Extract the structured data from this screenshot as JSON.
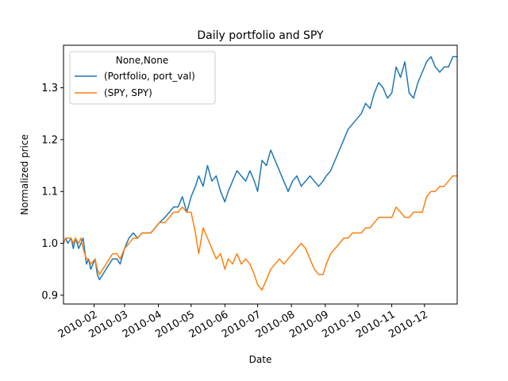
{
  "chart_data": {
    "type": "line",
    "title": "Daily portfolio and SPY",
    "xlabel": "Date",
    "ylabel": "Normalized price",
    "xlim": [
      "2010-01-04",
      "2010-12-31"
    ],
    "ylim": [
      0.883,
      1.382
    ],
    "yticks": [
      0.9,
      1.0,
      1.1,
      1.2,
      1.3
    ],
    "ytick_labels": [
      "0.9",
      "1.0",
      "1.1",
      "1.2",
      "1.3"
    ],
    "xticks": [
      "2010-02-01",
      "2010-03-01",
      "2010-04-01",
      "2010-05-01",
      "2010-06-01",
      "2010-07-01",
      "2010-08-01",
      "2010-09-01",
      "2010-10-01",
      "2010-11-01",
      "2010-12-01"
    ],
    "xtick_labels": [
      "2010-02",
      "2010-03",
      "2010-04",
      "2010-05",
      "2010-06",
      "2010-07",
      "2010-08",
      "2010-09",
      "2010-10",
      "2010-11",
      "2010-12"
    ],
    "grid": false,
    "legend": {
      "title": "None,None",
      "placement": "top-left"
    },
    "series": [
      {
        "name": "(Portfolio, port_val)",
        "color": "#1f77b4",
        "points": [
          [
            "2010-01-04",
            1.0
          ],
          [
            "2010-01-06",
            1.01
          ],
          [
            "2010-01-08",
            1.0
          ],
          [
            "2010-01-11",
            1.01
          ],
          [
            "2010-01-13",
            0.99
          ],
          [
            "2010-01-15",
            1.01
          ],
          [
            "2010-01-18",
            0.99
          ],
          [
            "2010-01-20",
            1.0
          ],
          [
            "2010-01-22",
            1.01
          ],
          [
            "2010-01-25",
            0.96
          ],
          [
            "2010-01-27",
            0.97
          ],
          [
            "2010-01-29",
            0.95
          ],
          [
            "2010-02-02",
            0.97
          ],
          [
            "2010-02-04",
            0.94
          ],
          [
            "2010-02-06",
            0.93
          ],
          [
            "2010-02-09",
            0.94
          ],
          [
            "2010-02-12",
            0.95
          ],
          [
            "2010-02-15",
            0.96
          ],
          [
            "2010-02-18",
            0.97
          ],
          [
            "2010-02-22",
            0.97
          ],
          [
            "2010-02-25",
            0.96
          ],
          [
            "2010-03-01",
            0.99
          ],
          [
            "2010-03-05",
            1.01
          ],
          [
            "2010-03-09",
            1.02
          ],
          [
            "2010-03-13",
            1.01
          ],
          [
            "2010-03-17",
            1.02
          ],
          [
            "2010-03-21",
            1.02
          ],
          [
            "2010-03-25",
            1.02
          ],
          [
            "2010-03-29",
            1.03
          ],
          [
            "2010-04-02",
            1.04
          ],
          [
            "2010-04-07",
            1.05
          ],
          [
            "2010-04-11",
            1.06
          ],
          [
            "2010-04-15",
            1.07
          ],
          [
            "2010-04-19",
            1.07
          ],
          [
            "2010-04-23",
            1.09
          ],
          [
            "2010-04-27",
            1.06
          ],
          [
            "2010-05-01",
            1.09
          ],
          [
            "2010-05-05",
            1.11
          ],
          [
            "2010-05-08",
            1.13
          ],
          [
            "2010-05-12",
            1.11
          ],
          [
            "2010-05-16",
            1.15
          ],
          [
            "2010-05-20",
            1.12
          ],
          [
            "2010-05-24",
            1.13
          ],
          [
            "2010-05-28",
            1.1
          ],
          [
            "2010-06-01",
            1.08
          ],
          [
            "2010-06-04",
            1.1
          ],
          [
            "2010-06-08",
            1.12
          ],
          [
            "2010-06-12",
            1.14
          ],
          [
            "2010-06-16",
            1.13
          ],
          [
            "2010-06-20",
            1.12
          ],
          [
            "2010-06-24",
            1.14
          ],
          [
            "2010-06-28",
            1.12
          ],
          [
            "2010-07-01",
            1.1
          ],
          [
            "2010-07-05",
            1.16
          ],
          [
            "2010-07-09",
            1.15
          ],
          [
            "2010-07-13",
            1.18
          ],
          [
            "2010-07-17",
            1.16
          ],
          [
            "2010-07-21",
            1.14
          ],
          [
            "2010-07-25",
            1.12
          ],
          [
            "2010-07-29",
            1.1
          ],
          [
            "2010-08-02",
            1.12
          ],
          [
            "2010-08-06",
            1.13
          ],
          [
            "2010-08-10",
            1.11
          ],
          [
            "2010-08-14",
            1.12
          ],
          [
            "2010-08-18",
            1.13
          ],
          [
            "2010-08-22",
            1.12
          ],
          [
            "2010-08-26",
            1.11
          ],
          [
            "2010-08-30",
            1.12
          ],
          [
            "2010-09-02",
            1.13
          ],
          [
            "2010-09-06",
            1.14
          ],
          [
            "2010-09-10",
            1.16
          ],
          [
            "2010-09-14",
            1.18
          ],
          [
            "2010-09-18",
            1.2
          ],
          [
            "2010-09-22",
            1.22
          ],
          [
            "2010-09-26",
            1.23
          ],
          [
            "2010-09-30",
            1.24
          ],
          [
            "2010-10-04",
            1.25
          ],
          [
            "2010-10-08",
            1.27
          ],
          [
            "2010-10-12",
            1.26
          ],
          [
            "2010-10-16",
            1.29
          ],
          [
            "2010-10-20",
            1.31
          ],
          [
            "2010-10-24",
            1.3
          ],
          [
            "2010-10-28",
            1.28
          ],
          [
            "2010-11-01",
            1.29
          ],
          [
            "2010-11-05",
            1.34
          ],
          [
            "2010-11-09",
            1.32
          ],
          [
            "2010-11-13",
            1.35
          ],
          [
            "2010-11-17",
            1.29
          ],
          [
            "2010-11-21",
            1.28
          ],
          [
            "2010-11-25",
            1.31
          ],
          [
            "2010-11-29",
            1.33
          ],
          [
            "2010-12-03",
            1.35
          ],
          [
            "2010-12-07",
            1.36
          ],
          [
            "2010-12-11",
            1.34
          ],
          [
            "2010-12-15",
            1.33
          ],
          [
            "2010-12-19",
            1.34
          ],
          [
            "2010-12-23",
            1.34
          ],
          [
            "2010-12-27",
            1.36
          ],
          [
            "2010-12-31",
            1.36
          ]
        ]
      },
      {
        "name": "(SPY, SPY)",
        "color": "#ff7f0e",
        "points": [
          [
            "2010-01-04",
            1.0
          ],
          [
            "2010-01-06",
            1.01
          ],
          [
            "2010-01-08",
            1.01
          ],
          [
            "2010-01-11",
            1.01
          ],
          [
            "2010-01-13",
            1.0
          ],
          [
            "2010-01-15",
            1.01
          ],
          [
            "2010-01-18",
            1.0
          ],
          [
            "2010-01-20",
            1.01
          ],
          [
            "2010-01-22",
            0.99
          ],
          [
            "2010-01-25",
            0.97
          ],
          [
            "2010-01-27",
            0.97
          ],
          [
            "2010-01-29",
            0.96
          ],
          [
            "2010-02-02",
            0.97
          ],
          [
            "2010-02-04",
            0.95
          ],
          [
            "2010-02-06",
            0.94
          ],
          [
            "2010-02-09",
            0.95
          ],
          [
            "2010-02-12",
            0.96
          ],
          [
            "2010-02-15",
            0.97
          ],
          [
            "2010-02-18",
            0.98
          ],
          [
            "2010-02-22",
            0.98
          ],
          [
            "2010-02-25",
            0.97
          ],
          [
            "2010-03-01",
            0.99
          ],
          [
            "2010-03-05",
            1.0
          ],
          [
            "2010-03-09",
            1.01
          ],
          [
            "2010-03-13",
            1.01
          ],
          [
            "2010-03-17",
            1.02
          ],
          [
            "2010-03-21",
            1.02
          ],
          [
            "2010-03-25",
            1.02
          ],
          [
            "2010-03-29",
            1.03
          ],
          [
            "2010-04-02",
            1.04
          ],
          [
            "2010-04-07",
            1.04
          ],
          [
            "2010-04-11",
            1.05
          ],
          [
            "2010-04-15",
            1.06
          ],
          [
            "2010-04-19",
            1.06
          ],
          [
            "2010-04-23",
            1.07
          ],
          [
            "2010-04-27",
            1.06
          ],
          [
            "2010-05-01",
            1.06
          ],
          [
            "2010-05-05",
            1.02
          ],
          [
            "2010-05-08",
            0.98
          ],
          [
            "2010-05-12",
            1.03
          ],
          [
            "2010-05-16",
            1.01
          ],
          [
            "2010-05-20",
            0.99
          ],
          [
            "2010-05-24",
            0.97
          ],
          [
            "2010-05-28",
            0.98
          ],
          [
            "2010-06-01",
            0.95
          ],
          [
            "2010-06-04",
            0.97
          ],
          [
            "2010-06-08",
            0.96
          ],
          [
            "2010-06-12",
            0.98
          ],
          [
            "2010-06-16",
            0.96
          ],
          [
            "2010-06-20",
            0.97
          ],
          [
            "2010-06-24",
            0.96
          ],
          [
            "2010-06-28",
            0.94
          ],
          [
            "2010-07-01",
            0.92
          ],
          [
            "2010-07-05",
            0.91
          ],
          [
            "2010-07-09",
            0.93
          ],
          [
            "2010-07-13",
            0.95
          ],
          [
            "2010-07-17",
            0.96
          ],
          [
            "2010-07-21",
            0.97
          ],
          [
            "2010-07-25",
            0.96
          ],
          [
            "2010-07-29",
            0.97
          ],
          [
            "2010-08-02",
            0.98
          ],
          [
            "2010-08-06",
            0.99
          ],
          [
            "2010-08-10",
            1.0
          ],
          [
            "2010-08-14",
            0.99
          ],
          [
            "2010-08-18",
            0.97
          ],
          [
            "2010-08-22",
            0.95
          ],
          [
            "2010-08-26",
            0.94
          ],
          [
            "2010-08-30",
            0.94
          ],
          [
            "2010-09-02",
            0.96
          ],
          [
            "2010-09-06",
            0.98
          ],
          [
            "2010-09-10",
            0.99
          ],
          [
            "2010-09-14",
            1.0
          ],
          [
            "2010-09-18",
            1.01
          ],
          [
            "2010-09-22",
            1.01
          ],
          [
            "2010-09-26",
            1.02
          ],
          [
            "2010-09-30",
            1.02
          ],
          [
            "2010-10-04",
            1.02
          ],
          [
            "2010-10-08",
            1.03
          ],
          [
            "2010-10-12",
            1.03
          ],
          [
            "2010-10-16",
            1.04
          ],
          [
            "2010-10-20",
            1.05
          ],
          [
            "2010-10-24",
            1.05
          ],
          [
            "2010-10-28",
            1.05
          ],
          [
            "2010-11-01",
            1.05
          ],
          [
            "2010-11-05",
            1.07
          ],
          [
            "2010-11-09",
            1.06
          ],
          [
            "2010-11-13",
            1.05
          ],
          [
            "2010-11-17",
            1.05
          ],
          [
            "2010-11-21",
            1.06
          ],
          [
            "2010-11-25",
            1.06
          ],
          [
            "2010-11-29",
            1.06
          ],
          [
            "2010-12-03",
            1.09
          ],
          [
            "2010-12-07",
            1.1
          ],
          [
            "2010-12-11",
            1.1
          ],
          [
            "2010-12-15",
            1.11
          ],
          [
            "2010-12-19",
            1.11
          ],
          [
            "2010-12-23",
            1.12
          ],
          [
            "2010-12-27",
            1.13
          ],
          [
            "2010-12-31",
            1.13
          ]
        ]
      }
    ]
  }
}
